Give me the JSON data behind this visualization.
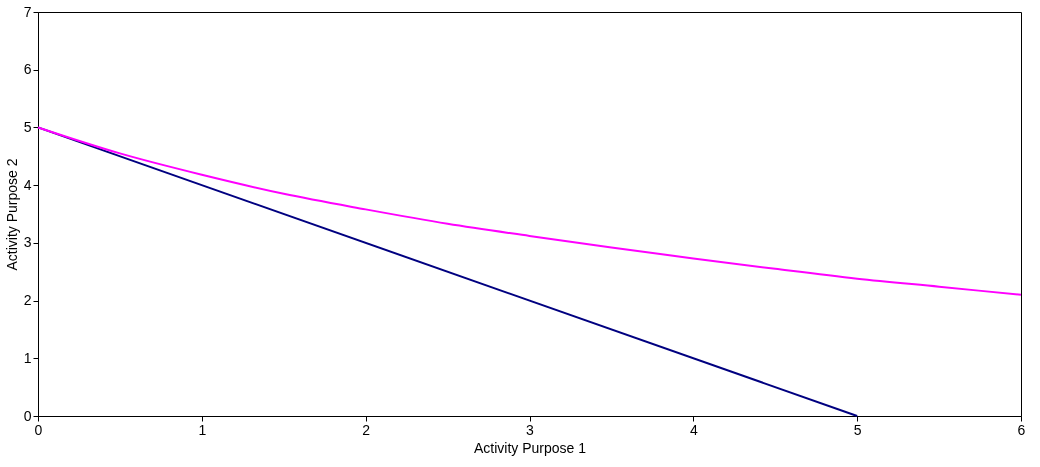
{
  "chart_data": {
    "type": "line",
    "xlabel": "Activity Purpose 1",
    "ylabel": "Activity Purpose 2",
    "xlim": [
      0,
      6
    ],
    "xticks": [
      0,
      1,
      2,
      3,
      4,
      5,
      6
    ],
    "ylim": [
      0,
      7
    ],
    "yticks": [
      0,
      1,
      2,
      3,
      4,
      5,
      6,
      7
    ],
    "grid": false,
    "marker": "none",
    "line_style": "solid",
    "series": [
      {
        "color": "#000080",
        "x": [
          0,
          5
        ],
        "values": [
          5,
          0
        ]
      },
      {
        "color": "#ff00ff",
        "x": [
          0,
          0.5,
          1,
          1.5,
          2,
          2.5,
          3,
          3.5,
          4,
          4.5,
          5,
          5.5,
          6
        ],
        "values": [
          5,
          4.55,
          4.18,
          3.85,
          3.58,
          3.33,
          3.12,
          2.92,
          2.73,
          2.55,
          2.38,
          2.24,
          2.1
        ]
      }
    ]
  }
}
